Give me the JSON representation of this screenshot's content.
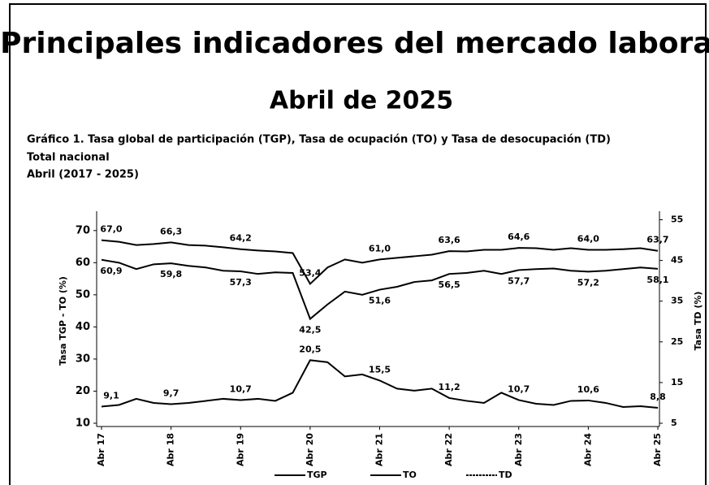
{
  "chart_data": {
    "type": "line",
    "title": "Principales indicadores del mercado laboral",
    "subtitle": "Abril de 2025",
    "chart_title": [
      "Gráfico 1. Tasa global de participación (TGP), Tasa de ocupación (TO) y Tasa de desocupación (TD)",
      "Total nacional",
      "Abril (2017 - 2025)"
    ],
    "ylabel": "Tasa TGP - TO (%)",
    "y2label": "Tasa TD (%)",
    "categories": [
      "Abr 17",
      null,
      null,
      null,
      "Abr 18",
      null,
      null,
      null,
      "Abr 19",
      null,
      null,
      null,
      "Abr 20",
      null,
      null,
      null,
      "Abr 21",
      null,
      null,
      null,
      "Abr 22",
      null,
      null,
      null,
      "Abr 23",
      null,
      null,
      null,
      "Abr 24",
      null,
      null,
      null,
      "Abr 25"
    ],
    "ylim": [
      10,
      74
    ],
    "yticks": [
      10,
      20,
      30,
      40,
      50,
      60,
      70
    ],
    "y2lim": [
      5,
      55.5
    ],
    "y2ticks": [
      5,
      15,
      25,
      35,
      45,
      55
    ],
    "legend": "bottom",
    "series": [
      {
        "name": "TGP",
        "color": "#000000",
        "values": [
          67.0,
          66.5,
          65.5,
          65.8,
          66.3,
          65.5,
          65.3,
          64.8,
          64.2,
          63.8,
          63.5,
          63.0,
          53.4,
          58.5,
          61.0,
          60.0,
          61.0,
          61.5,
          62.0,
          62.5,
          63.6,
          63.5,
          64.0,
          64.0,
          64.6,
          64.5,
          64.0,
          64.5,
          64.0,
          64.0,
          64.2,
          64.5,
          63.7
        ],
        "value_labels": [
          "67,0",
          null,
          null,
          null,
          "66,3",
          null,
          null,
          null,
          "64,2",
          null,
          null,
          null,
          "53,4",
          null,
          null,
          null,
          "61,0",
          null,
          null,
          null,
          "63,6",
          null,
          null,
          null,
          "64,6",
          null,
          null,
          null,
          "64,0",
          null,
          null,
          null,
          "63,7"
        ]
      },
      {
        "name": "TO",
        "color": "#000000",
        "values": [
          60.9,
          60.0,
          58.0,
          59.5,
          59.8,
          59.0,
          58.5,
          57.5,
          57.3,
          56.5,
          57.0,
          56.8,
          42.5,
          47.0,
          51.0,
          50.0,
          51.6,
          52.5,
          54.0,
          54.5,
          56.5,
          56.8,
          57.5,
          56.5,
          57.7,
          58.0,
          58.2,
          57.5,
          57.2,
          57.5,
          58.0,
          58.5,
          58.1
        ],
        "value_labels": [
          "60,9",
          null,
          null,
          null,
          "59,8",
          null,
          null,
          null,
          "57,3",
          null,
          null,
          null,
          "42,5",
          null,
          null,
          null,
          "51,6",
          null,
          null,
          null,
          "56,5",
          null,
          null,
          null,
          "57,7",
          null,
          null,
          null,
          "57,2",
          null,
          null,
          null,
          "58,1"
        ]
      },
      {
        "name": "TD",
        "color": "#000000",
        "axis": "y2",
        "values": [
          9.1,
          9.5,
          11.0,
          10.0,
          9.7,
          10.0,
          10.5,
          11.0,
          10.7,
          11.0,
          10.5,
          12.5,
          20.5,
          20.0,
          16.5,
          17.0,
          15.5,
          13.5,
          13.0,
          13.5,
          11.2,
          10.5,
          10.0,
          12.5,
          10.7,
          9.8,
          9.5,
          10.5,
          10.6,
          10.0,
          9.0,
          9.2,
          8.8
        ],
        "value_labels": [
          "9,1",
          null,
          null,
          null,
          "9,7",
          null,
          null,
          null,
          "10,7",
          null,
          null,
          null,
          "20,5",
          null,
          null,
          null,
          "15,5",
          null,
          null,
          null,
          "11,2",
          null,
          null,
          null,
          "10,7",
          null,
          null,
          null,
          "10,6",
          null,
          null,
          null,
          "8,8"
        ]
      }
    ]
  }
}
